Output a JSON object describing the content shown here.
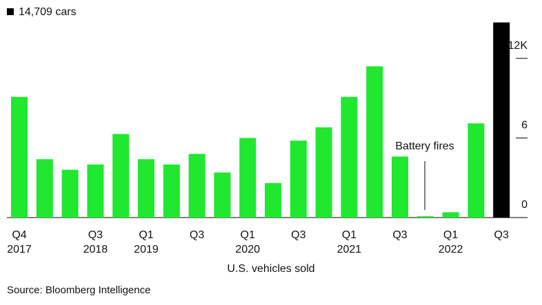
{
  "chart_data": {
    "type": "bar",
    "legend": "14,709 cars",
    "categories": [
      "Q4",
      null,
      null,
      "Q3",
      null,
      "Q1",
      null,
      "Q3",
      null,
      "Q1",
      null,
      "Q3",
      null,
      "Q1",
      null,
      "Q3",
      null,
      "Q1",
      null,
      "Q3"
    ],
    "years": [
      "2017",
      null,
      null,
      "2018",
      null,
      "2019",
      null,
      null,
      null,
      "2020",
      null,
      null,
      null,
      "2021",
      null,
      null,
      null,
      "2022",
      null,
      null
    ],
    "values": [
      9.1,
      4.4,
      3.6,
      4.0,
      6.3,
      4.4,
      4.0,
      4.8,
      3.4,
      6.0,
      2.6,
      5.8,
      6.8,
      9.1,
      11.4,
      4.6,
      0.1,
      0.4,
      7.1,
      14.709
    ],
    "colors": [
      "#1fe82f",
      "#1fe82f",
      "#1fe82f",
      "#1fe82f",
      "#1fe82f",
      "#1fe82f",
      "#1fe82f",
      "#1fe82f",
      "#1fe82f",
      "#1fe82f",
      "#1fe82f",
      "#1fe82f",
      "#1fe82f",
      "#1fe82f",
      "#1fe82f",
      "#1fe82f",
      "#1fe82f",
      "#1fe82f",
      "#1fe82f",
      "#000000"
    ],
    "ylim": [
      0,
      15
    ],
    "yticks": [
      0,
      6,
      {
        "value": 12,
        "label": "12K"
      }
    ],
    "annotation": "Battery fires",
    "xlabel": "U.S. vehicles sold",
    "source": "Source: Bloomberg Intelligence"
  }
}
